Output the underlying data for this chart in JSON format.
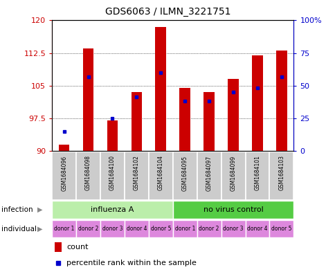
{
  "title": "GDS6063 / ILMN_3221751",
  "samples": [
    "GSM1684096",
    "GSM1684098",
    "GSM1684100",
    "GSM1684102",
    "GSM1684104",
    "GSM1684095",
    "GSM1684097",
    "GSM1684099",
    "GSM1684101",
    "GSM1684103"
  ],
  "bar_heights": [
    91.5,
    113.5,
    97.0,
    103.5,
    118.5,
    104.5,
    103.5,
    106.5,
    112.0,
    113.0
  ],
  "blue_positions": [
    94.5,
    107.0,
    97.5,
    102.5,
    108.0,
    101.5,
    101.5,
    103.5,
    104.5,
    107.0
  ],
  "ylim": [
    90,
    120
  ],
  "yticks_left": [
    90,
    97.5,
    105,
    112.5,
    120
  ],
  "yticks_right": [
    0,
    25,
    50,
    75,
    100
  ],
  "individual_labels": [
    "donor 1",
    "donor 2",
    "donor 3",
    "donor 4",
    "donor 5",
    "donor 1",
    "donor 2",
    "donor 3",
    "donor 4",
    "donor 5"
  ],
  "bar_color": "#cc0000",
  "blue_color": "#0000cc",
  "bg_color": "#cccccc",
  "left_axis_color": "#cc0000",
  "right_axis_color": "#0000cc",
  "infection_color_1": "#bbeeaa",
  "infection_color_2": "#55cc44",
  "individual_color": "#dd88dd"
}
